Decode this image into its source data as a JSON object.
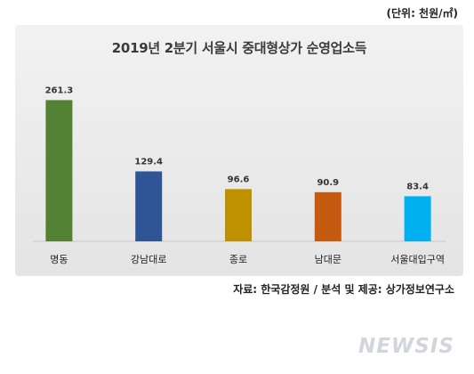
{
  "unit_label": "(단위: 천원/㎡)",
  "source_note": "자료: 한국감정원 / 분석 및 제공: 상가정보연구소",
  "watermark": "NEWSIS",
  "chart_data": {
    "type": "bar",
    "title": "2019년 2분기 서울시 중대형상가 순영업소득",
    "xlabel": "",
    "ylabel": "",
    "ylim": [
      0,
      290
    ],
    "grid": false,
    "categories": [
      "명동",
      "강남대로",
      "종로",
      "남대문",
      "서울대입구역"
    ],
    "values": [
      261.3,
      129.4,
      96.6,
      90.9,
      83.4
    ],
    "value_labels": [
      "261.3",
      "129.4",
      "96.6",
      "90.9",
      "83.4"
    ],
    "colors": [
      "#548235",
      "#2f5597",
      "#bf9000",
      "#c55a11",
      "#00b0f0"
    ]
  }
}
